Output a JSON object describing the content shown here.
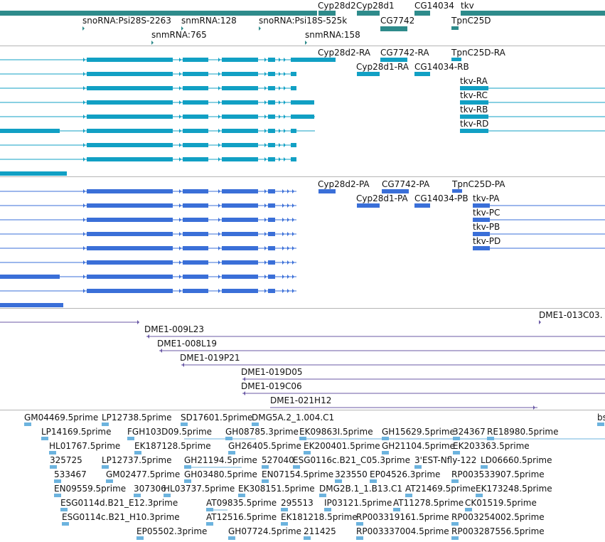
{
  "colors": {
    "gene": "#2e8b8b",
    "transcript": "#11a0c4",
    "protein": "#3a6fd8",
    "clone": "#6b5aa6",
    "est": "#6cb3de",
    "separator": "#b5b5b5"
  },
  "tracks": {
    "genes": {
      "labels": [
        "Cyp28d2",
        "Cyp28d1",
        "CG14034",
        "tkv",
        "snoRNA:Psi28S-2263",
        "snmRNA:128",
        "snoRNA:Psi18S-525k",
        "CG7742",
        "TpnC25D",
        "snmRNA:765",
        "snmRNA:158"
      ]
    },
    "transcripts": {
      "labels": [
        "Cyp28d2-RA",
        "CG7742-RA",
        "TpnC25D-RA",
        "Cyp28d1-RA",
        "CG14034-RB",
        "tkv-RA",
        "tkv-RC",
        "tkv-RB",
        "tkv-RD"
      ]
    },
    "proteins": {
      "labels": [
        "Cyp28d2-PA",
        "CG7742-PA",
        "TpnC25D-PA",
        "Cyp28d1-PA",
        "CG14034-PB",
        "tkv-PA",
        "tkv-PC",
        "tkv-PB",
        "tkv-PD"
      ]
    },
    "clones": {
      "labels": [
        "DME1-013C03.",
        "DME1-009L23",
        "DME1-008L19",
        "DME1-019P21",
        "DME1-019D05",
        "DME1-019C06",
        "DME1-021H12"
      ]
    },
    "ests": {
      "labels": [
        "GM04469.5prime",
        "LP12738.5prime",
        "SD17601.5prime",
        "DMG5A.2_1.004.C1",
        "bs",
        "LP14169.5prime",
        "FGH103D09.5prime",
        "GH08785.3prime",
        "EK09863I.5prime",
        "GH15629.5prime",
        "324367",
        "RE18980.5prime",
        "HL01767.5prime",
        "EK187128.5prime",
        "GH26405.5prime",
        "EK200401.5prime",
        "GH21104.5prime",
        "EK203363.5prime",
        "325725",
        "LP12737.5prime",
        "GH21194.5prime",
        "527040",
        "ESG0116c.B21_C05.3prime",
        "3'EST-Nfly-122",
        "LD06660.5prime",
        "533467",
        "GM02477.5prime",
        "GH03480.5prime",
        "EN07154.5prime",
        "323550",
        "EP04526.3prime",
        "RP003533907.5prime",
        "EN09559.5prime",
        "307306",
        "HL03737.5prime",
        "EK308151.5prime",
        "DMG2B.1_1.B13.C1",
        "AT21469.5prime",
        "EK173248.5prime",
        "ESG0114d.B21_E12.3prime",
        "AT09835.5prime",
        "295513",
        "IP03121.5prime",
        "AT11278.5prime",
        "CK01519.5prime",
        "ESG0114c.B21_H10.3prime",
        "AT12516.5prime",
        "EK181218.5prime",
        "RP003319161.5prime",
        "RP003254002.5prime",
        "EP05502.3prime",
        "GH07724.5prime",
        "211425",
        "RP003337004.5prime",
        "RP003287556.5prime"
      ]
    }
  }
}
